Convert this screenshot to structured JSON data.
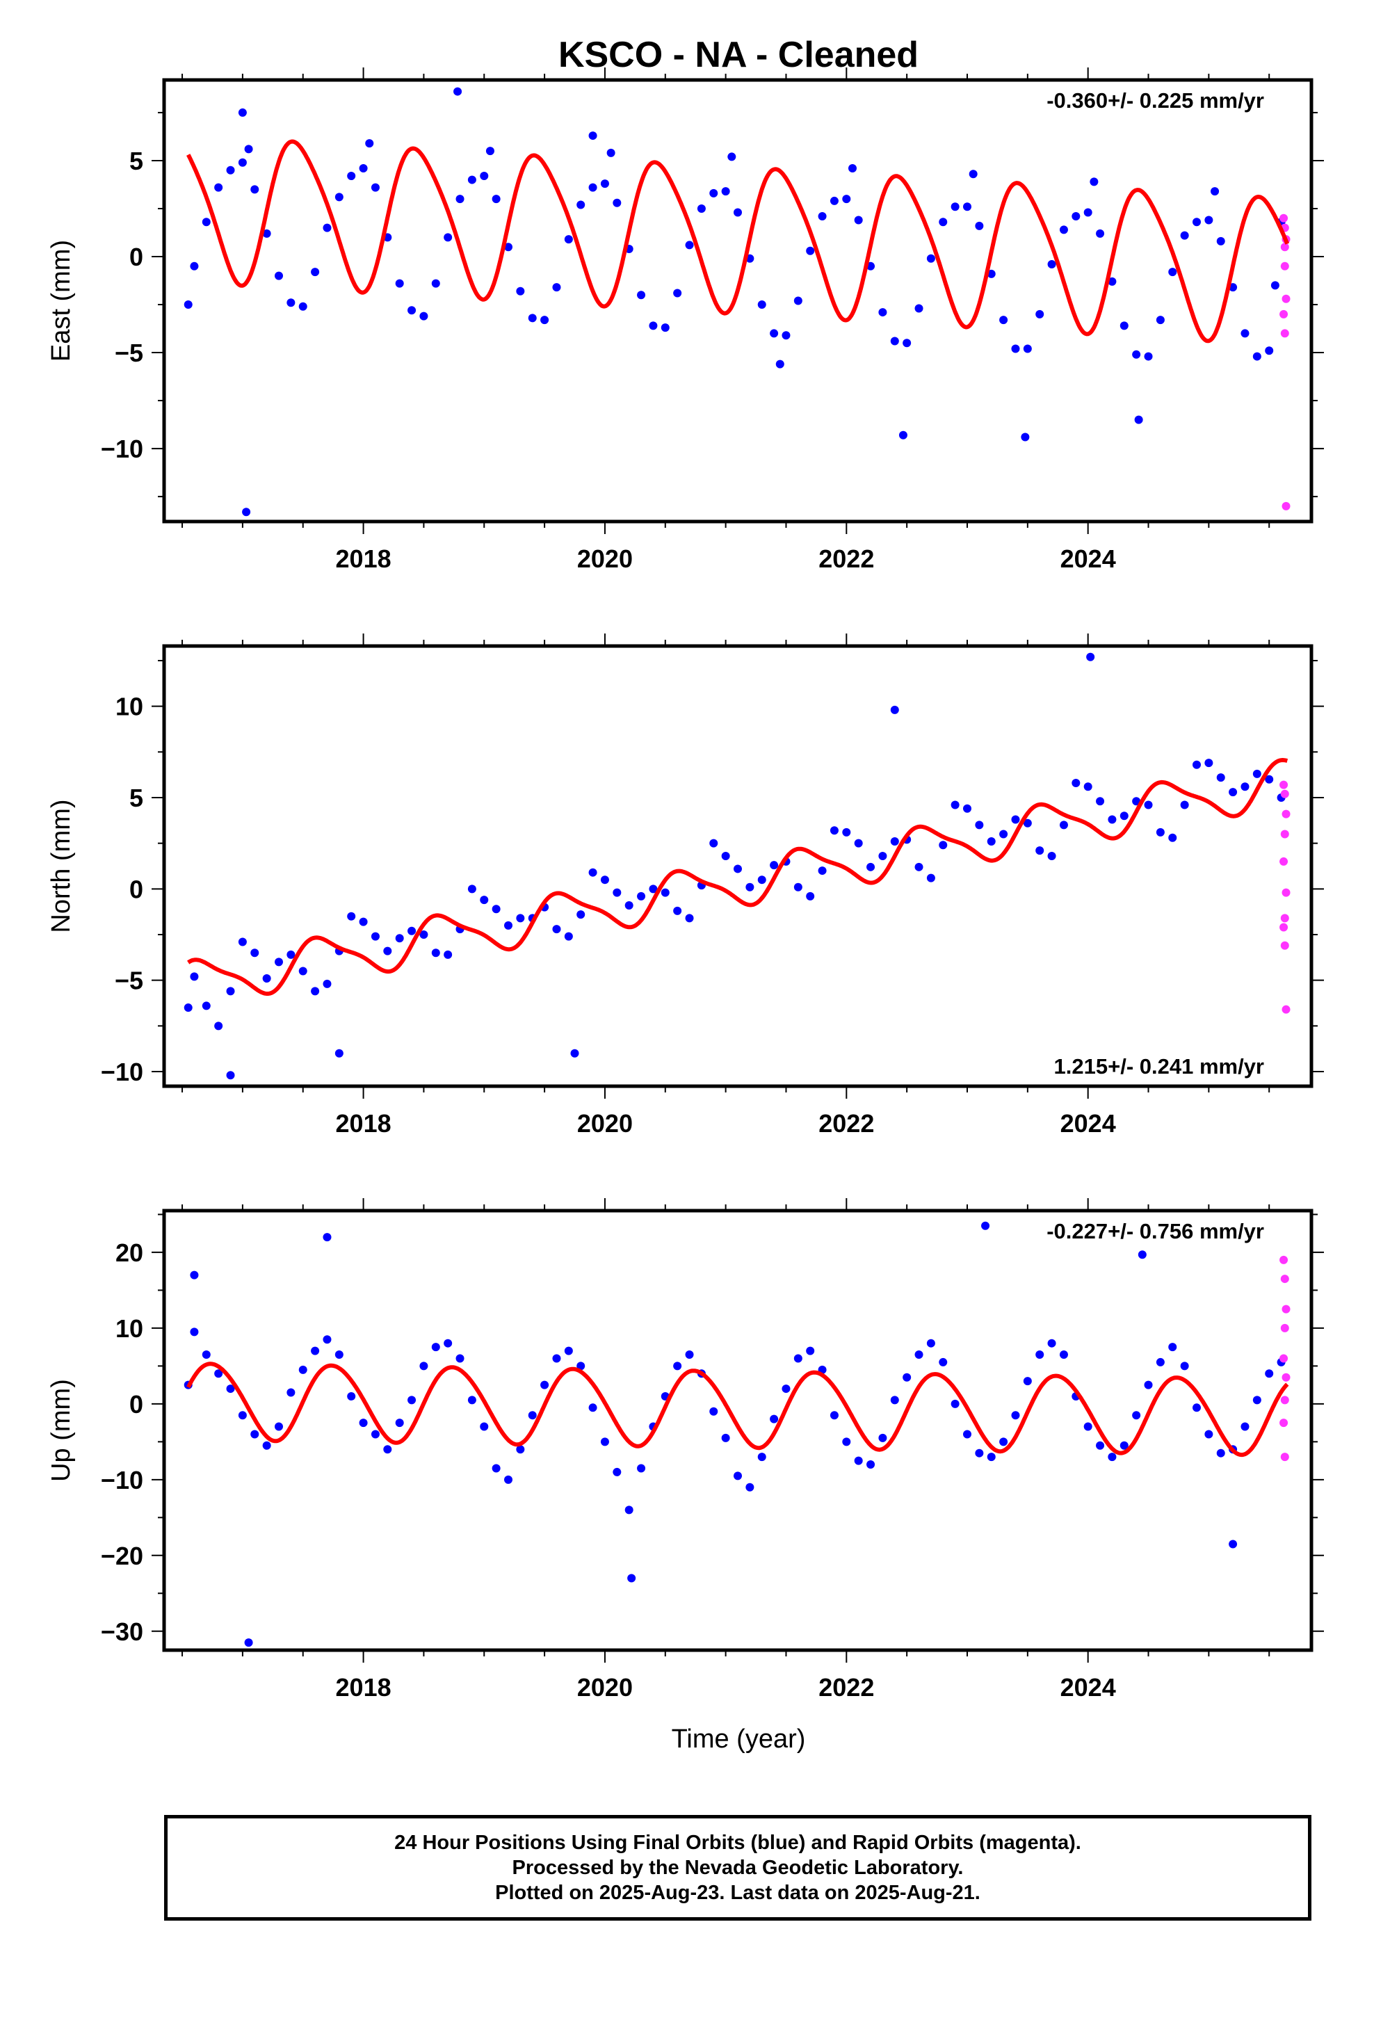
{
  "figure": {
    "title": "KSCO  - NA - Cleaned",
    "xlabel": "Time (year)",
    "caption": [
      "24 Hour Positions Using Final Orbits (blue) and Rapid Orbits (magenta).",
      "Processed by the Nevada Geodetic Laboratory.",
      "Plotted on 2025-Aug-23. Last data on 2025-Aug-21."
    ]
  },
  "colors": {
    "final_orbits": "#0000ff",
    "rapid_orbits": "#ff33ff",
    "model_fit": "#ff0000",
    "frame": "#000000"
  },
  "chart_data": [
    {
      "type": "scatter",
      "component": "East",
      "ylabel": "East (mm)",
      "rate_label": "-0.360+/- 0.225 mm/yr",
      "rate_label_position": "top-right",
      "xlim": [
        2016.35,
        2025.85
      ],
      "ylim": [
        -13.8,
        9.2
      ],
      "xticks": [
        2018,
        2020,
        2022,
        2024
      ],
      "yticks": [
        -10,
        -5,
        0,
        5
      ],
      "model": {
        "offset": 1.1,
        "rate": -0.36,
        "annual_cos": -3.6,
        "annual_sin": 0.9,
        "semiannual_cos": -0.45,
        "semiannual_sin": -0.3,
        "reference_epoch": 2021.0,
        "start": 2016.55,
        "end": 2025.65
      },
      "final_orbits": {
        "name": "Final Orbits (blue)",
        "x": [
          2016.55,
          2016.6,
          2016.7,
          2016.8,
          2016.9,
          2017.0,
          2017.05,
          2017.1,
          2017.2,
          2017.3,
          2017.4,
          2017.5,
          2017.6,
          2017.7,
          2017.8,
          2017.9,
          2018.0,
          2018.05,
          2018.1,
          2018.2,
          2018.3,
          2018.4,
          2018.5,
          2018.6,
          2018.7,
          2018.8,
          2018.9,
          2019.0,
          2019.05,
          2019.1,
          2019.2,
          2019.3,
          2019.4,
          2019.5,
          2019.6,
          2019.7,
          2019.8,
          2019.9,
          2020.0,
          2020.05,
          2020.1,
          2020.2,
          2020.3,
          2020.4,
          2020.5,
          2020.6,
          2020.7,
          2020.8,
          2020.9,
          2021.0,
          2021.05,
          2021.1,
          2021.2,
          2021.3,
          2021.4,
          2021.5,
          2021.6,
          2021.7,
          2021.8,
          2021.9,
          2022.0,
          2022.05,
          2022.1,
          2022.2,
          2022.3,
          2022.4,
          2022.5,
          2022.6,
          2022.7,
          2022.8,
          2022.9,
          2023.0,
          2023.05,
          2023.1,
          2023.2,
          2023.3,
          2023.4,
          2023.5,
          2023.6,
          2023.7,
          2023.8,
          2023.9,
          2024.0,
          2024.05,
          2024.1,
          2024.2,
          2024.3,
          2024.4,
          2024.5,
          2024.6,
          2024.7,
          2024.8,
          2024.9,
          2025.0,
          2025.05,
          2025.1,
          2025.2,
          2025.3,
          2025.4,
          2025.5,
          2025.55,
          2025.6,
          2017.03,
          2017.0,
          2018.78,
          2019.9,
          2021.45,
          2022.47,
          2023.48,
          2024.42
        ],
        "y": [
          -2.5,
          -0.5,
          1.8,
          3.6,
          4.5,
          4.9,
          5.6,
          3.5,
          1.2,
          -1.0,
          -2.4,
          -2.6,
          -0.8,
          1.5,
          3.1,
          4.2,
          4.6,
          5.9,
          3.6,
          1.0,
          -1.4,
          -2.8,
          -3.1,
          -1.4,
          1.0,
          3.0,
          4.0,
          4.2,
          5.5,
          3.0,
          0.5,
          -1.8,
          -3.2,
          -3.3,
          -1.6,
          0.9,
          2.7,
          3.6,
          3.8,
          5.4,
          2.8,
          0.4,
          -2.0,
          -3.6,
          -3.7,
          -1.9,
          0.6,
          2.5,
          3.3,
          3.4,
          5.2,
          2.3,
          -0.1,
          -2.5,
          -4.0,
          -4.1,
          -2.3,
          0.3,
          2.1,
          2.9,
          3.0,
          4.6,
          1.9,
          -0.5,
          -2.9,
          -4.4,
          -4.5,
          -2.7,
          -0.1,
          1.8,
          2.6,
          2.6,
          4.3,
          1.6,
          -0.9,
          -3.3,
          -4.8,
          -4.8,
          -3.0,
          -0.4,
          1.4,
          2.1,
          2.3,
          3.9,
          1.2,
          -1.3,
          -3.6,
          -5.1,
          -5.2,
          -3.3,
          -0.8,
          1.1,
          1.8,
          1.9,
          3.4,
          0.8,
          -1.6,
          -4.0,
          -5.2,
          -4.9,
          -1.5,
          1.8,
          -13.3,
          7.5,
          8.6,
          6.3,
          -5.6,
          -9.3,
          -9.4,
          -8.5
        ]
      },
      "rapid_orbits": {
        "name": "Rapid Orbits (magenta)",
        "x": [
          2025.62,
          2025.63,
          2025.64,
          2025.63,
          2025.64,
          2025.62,
          2025.63,
          2025.64,
          2025.63
        ],
        "y": [
          2.0,
          1.5,
          0.9,
          -0.5,
          -2.2,
          -3.0,
          -4.0,
          -13.0,
          0.5
        ]
      }
    },
    {
      "type": "scatter",
      "component": "North",
      "ylabel": "North (mm)",
      "rate_label": "1.215+/- 0.241 mm/yr",
      "rate_label_position": "bottom-right",
      "xlim": [
        2016.35,
        2025.85
      ],
      "ylim": [
        -10.8,
        13.3
      ],
      "xticks": [
        2018,
        2020,
        2022,
        2024
      ],
      "yticks": [
        -10,
        -5,
        0,
        5,
        10
      ],
      "model": {
        "offset": 0.2,
        "rate": 1.215,
        "annual_cos": -0.6,
        "annual_sin": -1.0,
        "semiannual_cos": 0.3,
        "semiannual_sin": 0.1,
        "reference_epoch": 2021.0,
        "start": 2016.55,
        "end": 2025.65
      },
      "final_orbits": {
        "name": "Final Orbits (blue)",
        "x": [
          2016.55,
          2016.6,
          2016.7,
          2016.8,
          2016.9,
          2017.0,
          2017.1,
          2017.2,
          2017.3,
          2017.4,
          2017.5,
          2017.6,
          2017.7,
          2017.8,
          2017.9,
          2018.0,
          2018.1,
          2018.2,
          2018.3,
          2018.4,
          2018.5,
          2018.6,
          2018.7,
          2018.8,
          2018.9,
          2019.0,
          2019.1,
          2019.2,
          2019.3,
          2019.4,
          2019.5,
          2019.6,
          2019.7,
          2019.8,
          2019.9,
          2020.0,
          2020.1,
          2020.2,
          2020.3,
          2020.4,
          2020.5,
          2020.6,
          2020.7,
          2020.8,
          2020.9,
          2021.0,
          2021.1,
          2021.2,
          2021.3,
          2021.4,
          2021.5,
          2021.6,
          2021.7,
          2021.8,
          2021.9,
          2022.0,
          2022.1,
          2022.2,
          2022.3,
          2022.4,
          2022.5,
          2022.6,
          2022.7,
          2022.8,
          2022.9,
          2023.0,
          2023.1,
          2023.2,
          2023.3,
          2023.4,
          2023.5,
          2023.6,
          2023.7,
          2023.8,
          2023.9,
          2024.0,
          2024.1,
          2024.2,
          2024.3,
          2024.4,
          2024.5,
          2024.6,
          2024.7,
          2024.8,
          2024.9,
          2025.0,
          2025.1,
          2025.2,
          2025.3,
          2025.4,
          2025.5,
          2025.6,
          2024.02,
          2022.4,
          2017.8,
          2019.75,
          2016.9
        ],
        "y": [
          -6.5,
          -4.8,
          -6.4,
          -7.5,
          -5.6,
          -2.9,
          -3.5,
          -4.9,
          -4.0,
          -3.6,
          -4.5,
          -5.6,
          -5.2,
          -3.4,
          -1.5,
          -1.8,
          -2.6,
          -3.4,
          -2.7,
          -2.3,
          -2.5,
          -3.5,
          -3.6,
          -2.2,
          0.0,
          -0.6,
          -1.1,
          -2.0,
          -1.6,
          -1.6,
          -1.0,
          -2.2,
          -2.6,
          -1.4,
          0.9,
          0.5,
          -0.2,
          -0.9,
          -0.4,
          0.0,
          -0.2,
          -1.2,
          -1.6,
          0.2,
          2.5,
          1.8,
          1.1,
          0.1,
          0.5,
          1.3,
          1.5,
          0.1,
          -0.4,
          1.0,
          3.2,
          3.1,
          2.5,
          1.2,
          1.8,
          2.6,
          2.7,
          1.2,
          0.6,
          2.4,
          4.6,
          4.4,
          3.5,
          2.6,
          3.0,
          3.8,
          3.6,
          2.1,
          1.8,
          3.5,
          5.8,
          5.6,
          4.8,
          3.8,
          4.0,
          4.8,
          4.6,
          3.1,
          2.8,
          4.6,
          6.8,
          6.9,
          6.1,
          5.3,
          5.6,
          6.3,
          6.0,
          5.0,
          12.7,
          9.8,
          -9.0,
          -9.0,
          -10.2
        ]
      },
      "rapid_orbits": {
        "name": "Rapid Orbits (magenta)",
        "x": [
          2025.62,
          2025.63,
          2025.64,
          2025.63,
          2025.62,
          2025.64,
          2025.63,
          2025.62,
          2025.63,
          2025.64
        ],
        "y": [
          5.7,
          5.2,
          4.1,
          3.0,
          1.5,
          -0.2,
          -1.6,
          -2.1,
          -3.1,
          -6.6
        ]
      }
    },
    {
      "type": "scatter",
      "component": "Up",
      "ylabel": "Up (mm)",
      "rate_label": "-0.227+/- 0.756 mm/yr",
      "rate_label_position": "top-right",
      "xlim": [
        2016.35,
        2025.85
      ],
      "ylim": [
        -32.5,
        25.5
      ],
      "xticks": [
        2018,
        2020,
        2022,
        2024
      ],
      "yticks": [
        -30,
        -20,
        -10,
        0,
        10,
        20
      ],
      "model": {
        "offset": -0.5,
        "rate": -0.227,
        "annual_cos": 0.2,
        "annual_sin": -5.0,
        "semiannual_cos": 0.2,
        "semiannual_sin": 0.3,
        "reference_epoch": 2021.0,
        "start": 2016.55,
        "end": 2025.65
      },
      "final_orbits": {
        "name": "Final Orbits (blue)",
        "x": [
          2016.55,
          2016.6,
          2016.7,
          2016.8,
          2016.9,
          2017.0,
          2017.1,
          2017.2,
          2017.3,
          2017.4,
          2017.5,
          2017.6,
          2017.7,
          2017.8,
          2017.9,
          2018.0,
          2018.1,
          2018.2,
          2018.3,
          2018.4,
          2018.5,
          2018.6,
          2018.7,
          2018.8,
          2018.9,
          2019.0,
          2019.1,
          2019.2,
          2019.3,
          2019.4,
          2019.5,
          2019.6,
          2019.7,
          2019.8,
          2019.9,
          2020.0,
          2020.1,
          2020.2,
          2020.3,
          2020.4,
          2020.5,
          2020.6,
          2020.7,
          2020.8,
          2020.9,
          2021.0,
          2021.1,
          2021.2,
          2021.3,
          2021.4,
          2021.5,
          2021.6,
          2021.7,
          2021.8,
          2021.9,
          2022.0,
          2022.1,
          2022.2,
          2022.3,
          2022.4,
          2022.5,
          2022.6,
          2022.7,
          2022.8,
          2022.9,
          2023.0,
          2023.1,
          2023.2,
          2023.3,
          2023.4,
          2023.5,
          2023.6,
          2023.7,
          2023.8,
          2023.9,
          2024.0,
          2024.1,
          2024.2,
          2024.3,
          2024.4,
          2024.5,
          2024.6,
          2024.7,
          2024.8,
          2024.9,
          2025.0,
          2025.1,
          2025.2,
          2025.3,
          2025.4,
          2025.5,
          2025.6,
          2017.05,
          2017.7,
          2023.15,
          2020.22,
          2016.6,
          2024.45,
          2025.2
        ],
        "y": [
          2.5,
          9.5,
          6.5,
          4.0,
          2.0,
          -1.5,
          -4.0,
          -5.5,
          -3.0,
          1.5,
          4.5,
          7.0,
          8.5,
          6.5,
          1.0,
          -2.5,
          -4.0,
          -6.0,
          -2.5,
          0.5,
          5.0,
          7.5,
          8.0,
          6.0,
          0.5,
          -3.0,
          -8.5,
          -10.0,
          -6.0,
          -1.5,
          2.5,
          6.0,
          7.0,
          5.0,
          -0.5,
          -5.0,
          -9.0,
          -14.0,
          -8.5,
          -3.0,
          1.0,
          5.0,
          6.5,
          4.0,
          -1.0,
          -4.5,
          -9.5,
          -11.0,
          -7.0,
          -2.0,
          2.0,
          6.0,
          7.0,
          4.5,
          -1.5,
          -5.0,
          -7.5,
          -8.0,
          -4.5,
          0.5,
          3.5,
          6.5,
          8.0,
          5.5,
          0.0,
          -4.0,
          -6.5,
          -7.0,
          -5.0,
          -1.5,
          3.0,
          6.5,
          8.0,
          6.5,
          1.0,
          -3.0,
          -5.5,
          -7.0,
          -5.5,
          -1.5,
          2.5,
          5.5,
          7.5,
          5.0,
          -0.5,
          -4.0,
          -6.5,
          -6.0,
          -3.0,
          0.5,
          4.0,
          5.5,
          -31.5,
          22.0,
          23.5,
          -23.0,
          17.0,
          19.7,
          -18.5
        ]
      },
      "rapid_orbits": {
        "name": "Rapid Orbits (magenta)",
        "x": [
          2025.62,
          2025.63,
          2025.64,
          2025.63,
          2025.62,
          2025.64,
          2025.63,
          2025.62,
          2025.63
        ],
        "y": [
          19.0,
          16.5,
          12.5,
          10.0,
          6.0,
          3.5,
          0.5,
          -2.5,
          -7.0
        ]
      }
    }
  ]
}
